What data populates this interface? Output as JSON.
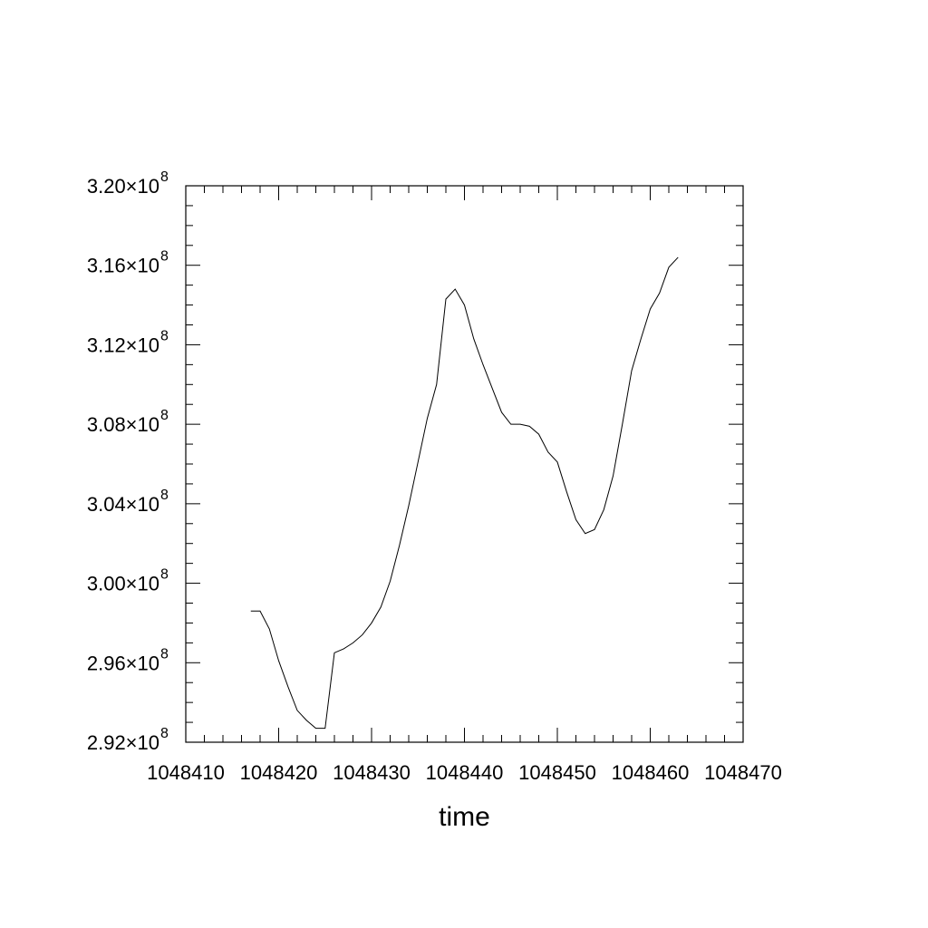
{
  "chart_data": {
    "type": "line",
    "title": "",
    "xlabel": "time",
    "ylabel": "",
    "xlim": [
      1048410,
      1048470
    ],
    "ylim": [
      292000000,
      320000000
    ],
    "xticks": [
      1048410,
      1048420,
      1048430,
      1048440,
      1048450,
      1048460,
      1048470
    ],
    "xtick_labels": [
      "1048410",
      "1048420",
      "1048430",
      "1048440",
      "1048450",
      "1048460",
      "1048470"
    ],
    "yticks": [
      292000000,
      296000000,
      300000000,
      304000000,
      308000000,
      312000000,
      316000000,
      320000000
    ],
    "ytick_labels": [
      {
        "mantissa": "2.92",
        "times": "×10",
        "exp": "8"
      },
      {
        "mantissa": "2.96",
        "times": "×10",
        "exp": "8"
      },
      {
        "mantissa": "3.00",
        "times": "×10",
        "exp": "8"
      },
      {
        "mantissa": "3.04",
        "times": "×10",
        "exp": "8"
      },
      {
        "mantissa": "3.08",
        "times": "×10",
        "exp": "8"
      },
      {
        "mantissa": "3.12",
        "times": "×10",
        "exp": "8"
      },
      {
        "mantissa": "3.16",
        "times": "×10",
        "exp": "8"
      },
      {
        "mantissa": "3.20",
        "times": "×10",
        "exp": "8"
      }
    ],
    "grid": false,
    "legend": "none",
    "line_color": "#000000",
    "series": [
      {
        "x": [
          1048417,
          1048418,
          1048419,
          1048420,
          1048421,
          1048422,
          1048423,
          1048424,
          1048425,
          1048426,
          1048427,
          1048428,
          1048429,
          1048430,
          1048431,
          1048432,
          1048433,
          1048434,
          1048435,
          1048436,
          1048437,
          1048438,
          1048439,
          1048440,
          1048441,
          1048442,
          1048443,
          1048444,
          1048445,
          1048446,
          1048447,
          1048448,
          1048449,
          1048450,
          1048451,
          1048452,
          1048453,
          1048454,
          1048455,
          1048456,
          1048457,
          1048458,
          1048459,
          1048460,
          1048461,
          1048462,
          1048463
        ],
        "y": [
          298600000,
          298600000,
          297700000,
          296100000,
          294800000,
          293600000,
          293100000,
          292700000,
          292700000,
          296500000,
          296700000,
          297000000,
          297400000,
          298000000,
          298800000,
          300100000,
          301900000,
          303900000,
          306100000,
          308300000,
          310000000,
          314300000,
          314800000,
          314000000,
          312300000,
          311000000,
          309800000,
          308600000,
          308000000,
          308000000,
          307900000,
          307500000,
          306600000,
          306100000,
          304600000,
          303200000,
          302500000,
          302700000,
          303700000,
          305400000,
          308000000,
          310700000,
          312300000,
          313800000,
          314600000,
          315900000,
          316400000
        ]
      }
    ]
  }
}
